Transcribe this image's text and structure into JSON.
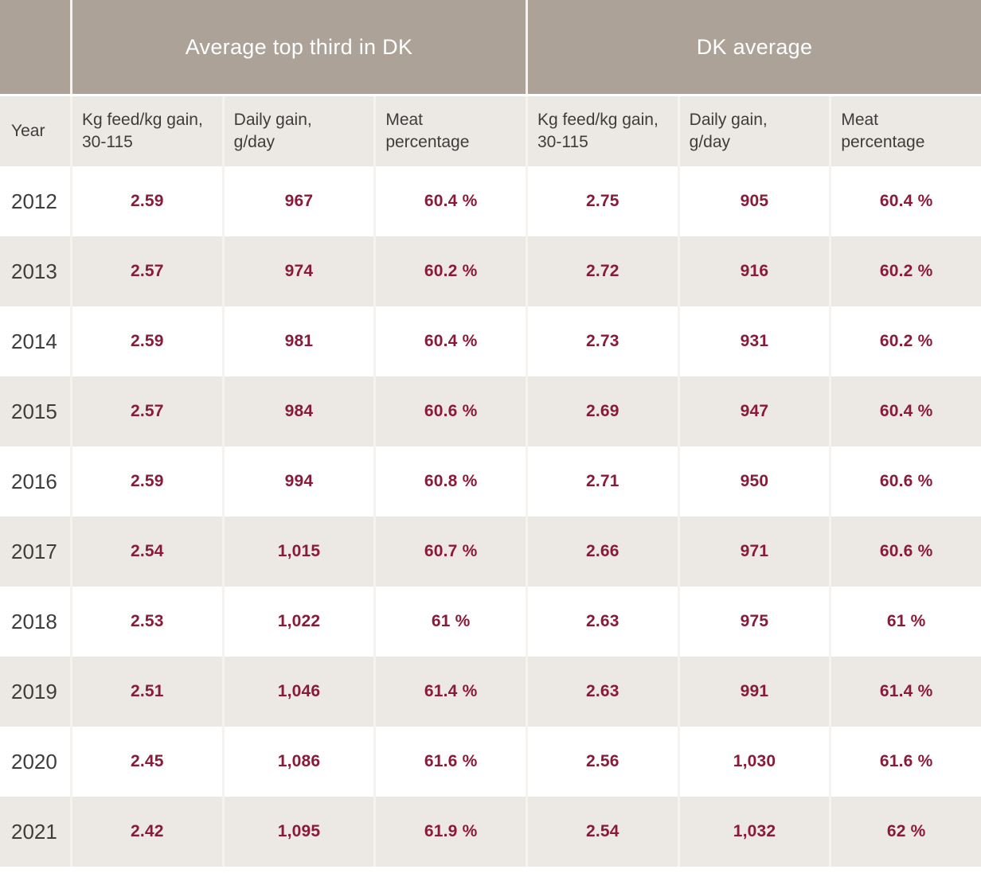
{
  "table": {
    "year_label": "Year",
    "groups": [
      {
        "title": "Average top third in DK"
      },
      {
        "title": "DK average"
      }
    ],
    "sub_columns": [
      {
        "line1": "Kg feed/kg gain,",
        "line2": "30-115"
      },
      {
        "line1": "Daily gain,",
        "line2": "g/day"
      },
      {
        "line1": "Meat",
        "line2": "percentage"
      },
      {
        "line1": "Kg feed/kg gain,",
        "line2": "30-115"
      },
      {
        "line1": "Daily gain,",
        "line2": "g/day"
      },
      {
        "line1": "Meat",
        "line2": "percentage"
      }
    ],
    "rows": [
      {
        "year": "2012",
        "values": [
          "2.59",
          "967",
          "60.4 %",
          "2.75",
          "905",
          "60.4 %"
        ]
      },
      {
        "year": "2013",
        "values": [
          "2.57",
          "974",
          "60.2 %",
          "2.72",
          "916",
          "60.2 %"
        ]
      },
      {
        "year": "2014",
        "values": [
          "2.59",
          "981",
          "60.4 %",
          "2.73",
          "931",
          "60.2 %"
        ]
      },
      {
        "year": "2015",
        "values": [
          "2.57",
          "984",
          "60.6 %",
          "2.69",
          "947",
          "60.4 %"
        ]
      },
      {
        "year": "2016",
        "values": [
          "2.59",
          "994",
          "60.8 %",
          "2.71",
          "950",
          "60.6 %"
        ]
      },
      {
        "year": "2017",
        "values": [
          "2.54",
          "1,015",
          "60.7 %",
          "2.66",
          "971",
          "60.6 %"
        ]
      },
      {
        "year": "2018",
        "values": [
          "2.53",
          "1,022",
          "61 %",
          "2.63",
          "975",
          "61 %"
        ]
      },
      {
        "year": "2019",
        "values": [
          "2.51",
          "1,046",
          "61.4 %",
          "2.63",
          "991",
          "61.4 %"
        ]
      },
      {
        "year": "2020",
        "values": [
          "2.45",
          "1,086",
          "61.6 %",
          "2.56",
          "1,030",
          "61.6 %"
        ]
      },
      {
        "year": "2021",
        "values": [
          "2.42",
          "1,095",
          "61.9 %",
          "2.54",
          "1,032",
          "62 %"
        ]
      }
    ]
  },
  "colors": {
    "group_header_bg": "#ada298",
    "header_text": "#ffffff",
    "stripe_bg": "#ece8e4",
    "row_bg": "#ffffff",
    "value_text": "#8a1b38",
    "label_text": "#3d3d3c",
    "separator": "#f5f2f0"
  },
  "chart_data": {
    "type": "table",
    "column_groups": [
      "",
      "Average top third in DK",
      "DK average"
    ],
    "columns": [
      "Year",
      "Kg feed/kg gain, 30-115",
      "Daily gain, g/day",
      "Meat percentage",
      "Kg feed/kg gain, 30-115",
      "Daily gain, g/day",
      "Meat percentage"
    ],
    "rows": [
      [
        2012,
        2.59,
        967,
        "60.4 %",
        2.75,
        905,
        "60.4 %"
      ],
      [
        2013,
        2.57,
        974,
        "60.2 %",
        2.72,
        916,
        "60.2 %"
      ],
      [
        2014,
        2.59,
        981,
        "60.4 %",
        2.73,
        931,
        "60.2 %"
      ],
      [
        2015,
        2.57,
        984,
        "60.6 %",
        2.69,
        947,
        "60.4 %"
      ],
      [
        2016,
        2.59,
        994,
        "60.8 %",
        2.71,
        950,
        "60.6 %"
      ],
      [
        2017,
        2.54,
        1015,
        "60.7 %",
        2.66,
        971,
        "60.6 %"
      ],
      [
        2018,
        2.53,
        1022,
        "61 %",
        2.63,
        975,
        "61 %"
      ],
      [
        2019,
        2.51,
        1046,
        "61.4 %",
        2.63,
        991,
        "61.4 %"
      ],
      [
        2020,
        2.45,
        1086,
        "61.6 %",
        2.56,
        1030,
        "61.6 %"
      ],
      [
        2021,
        2.42,
        1095,
        "61.9 %",
        2.54,
        1032,
        "62 %"
      ]
    ]
  }
}
